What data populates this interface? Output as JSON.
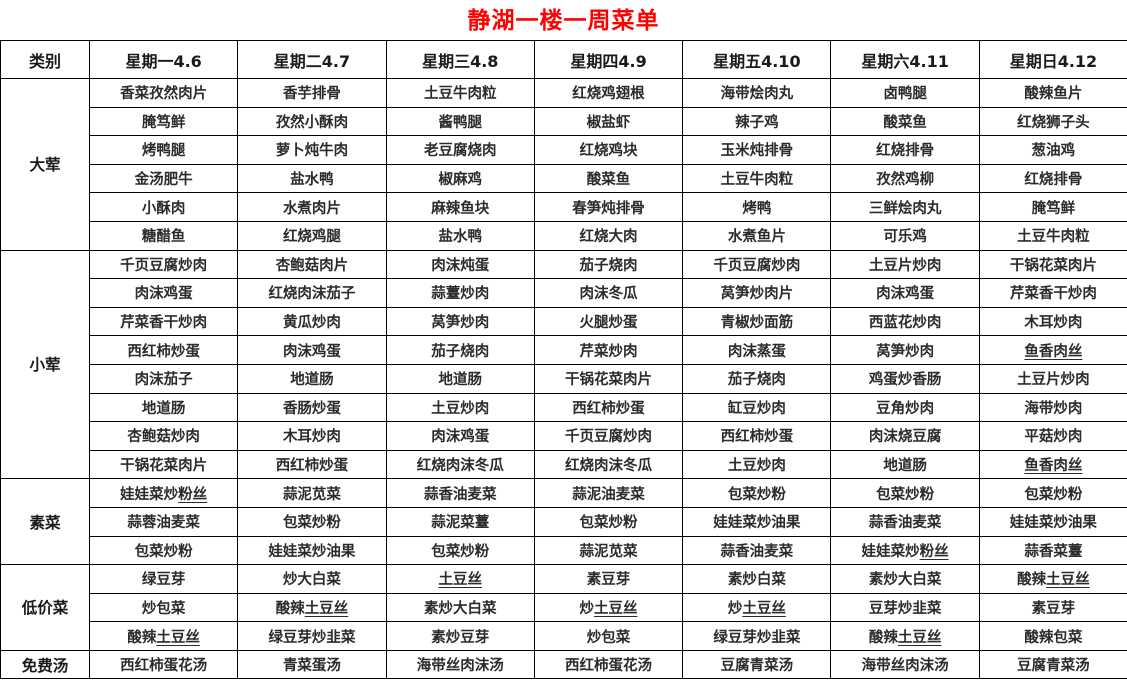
{
  "title": "静湖一楼一周菜单",
  "title_color": "#ff0000",
  "header": [
    "类别",
    "星期一4.6",
    "星期二4.7",
    "星期三4.8",
    "星期四4.9",
    "星期五4.10",
    "星期六4.11",
    "星期日4.12"
  ],
  "underline_suffixes": [
    "土豆丝",
    "粉丝",
    "鱼香肉丝"
  ],
  "sections": [
    {
      "category": "大荤",
      "rows": [
        [
          "香菜孜然肉片",
          "香芋排骨",
          "土豆牛肉粒",
          "红烧鸡翅根",
          "海带烩肉丸",
          "卤鸭腿",
          "酸辣鱼片"
        ],
        [
          "腌笃鲜",
          "孜然小酥肉",
          "酱鸭腿",
          "椒盐虾",
          "辣子鸡",
          "酸菜鱼",
          "红烧狮子头"
        ],
        [
          "烤鸭腿",
          "萝卜炖牛肉",
          "老豆腐烧肉",
          "红烧鸡块",
          "玉米炖排骨",
          "红烧排骨",
          "葱油鸡"
        ],
        [
          "金汤肥牛",
          "盐水鸭",
          "椒麻鸡",
          "酸菜鱼",
          "土豆牛肉粒",
          "孜然鸡柳",
          "红烧排骨"
        ],
        [
          "小酥肉",
          "水煮肉片",
          "麻辣鱼块",
          "春笋炖排骨",
          "烤鸭",
          "三鲜烩肉丸",
          "腌笃鲜"
        ],
        [
          "糖醋鱼",
          "红烧鸡腿",
          "盐水鸭",
          "红烧大肉",
          "水煮鱼片",
          "可乐鸡",
          "土豆牛肉粒"
        ]
      ]
    },
    {
      "category": "小荤",
      "rows": [
        [
          "千页豆腐炒肉",
          "杏鲍菇肉片",
          "肉沫炖蛋",
          "茄子烧肉",
          "千页豆腐炒肉",
          "土豆片炒肉",
          "干锅花菜肉片"
        ],
        [
          "肉沫鸡蛋",
          "红烧肉沫茄子",
          "蒜薹炒肉",
          "肉沫冬瓜",
          "莴笋炒肉片",
          "肉沫鸡蛋",
          "芹菜香干炒肉"
        ],
        [
          "芹菜香干炒肉",
          "黄瓜炒肉",
          "莴笋炒肉",
          "火腿炒蛋",
          "青椒炒面筋",
          "西蓝花炒肉",
          "木耳炒肉"
        ],
        [
          "西红柿炒蛋",
          "肉沫鸡蛋",
          "茄子烧肉",
          "芹菜炒肉",
          "肉沫蒸蛋",
          "莴笋炒肉",
          "鱼香肉丝"
        ],
        [
          "肉沫茄子",
          "地道肠",
          "地道肠",
          "干锅花菜肉片",
          "茄子烧肉",
          "鸡蛋炒香肠",
          "土豆片炒肉"
        ],
        [
          "地道肠",
          "香肠炒蛋",
          "土豆炒肉",
          "西红柿炒蛋",
          "缸豆炒肉",
          "豆角炒肉",
          "海带炒肉"
        ],
        [
          "杏鲍菇炒肉",
          "木耳炒肉",
          "肉沫鸡蛋",
          "千页豆腐炒肉",
          "西红柿炒蛋",
          "肉沫烧豆腐",
          "平菇炒肉"
        ],
        [
          "干锅花菜肉片",
          "西红柿炒蛋",
          "红烧肉沫冬瓜",
          "红烧肉沫冬瓜",
          "土豆炒肉",
          "地道肠",
          "鱼香肉丝"
        ]
      ]
    },
    {
      "category": "素菜",
      "rows": [
        [
          "娃娃菜炒粉丝",
          "蒜泥苋菜",
          "蒜香油麦菜",
          "蒜泥油麦菜",
          "包菜炒粉",
          "包菜炒粉",
          "包菜炒粉"
        ],
        [
          "蒜蓉油麦菜",
          "包菜炒粉",
          "蒜泥菜薹",
          "包菜炒粉",
          "娃娃菜炒油果",
          "蒜香油麦菜",
          "娃娃菜炒油果"
        ],
        [
          "包菜炒粉",
          "娃娃菜炒油果",
          "包菜炒粉",
          "蒜泥苋菜",
          "蒜香油麦菜",
          "娃娃菜炒粉丝",
          "蒜香菜薹"
        ]
      ]
    },
    {
      "category": "低价菜",
      "rows": [
        [
          "绿豆芽",
          "炒大白菜",
          "土豆丝",
          "素豆芽",
          "素炒白菜",
          "素炒大白菜",
          "酸辣土豆丝"
        ],
        [
          "炒包菜",
          "酸辣土豆丝",
          "素炒大白菜",
          "炒土豆丝",
          "炒土豆丝",
          "豆芽炒韭菜",
          "素豆芽"
        ],
        [
          "酸辣土豆丝",
          "绿豆芽炒韭菜",
          "素炒豆芽",
          "炒包菜",
          "绿豆芽炒韭菜",
          "酸辣土豆丝",
          "酸辣包菜"
        ]
      ]
    },
    {
      "category": "免费汤",
      "rows": [
        [
          "西红柿蛋花汤",
          "青菜蛋汤",
          "海带丝肉沫汤",
          "西红柿蛋花汤",
          "豆腐青菜汤",
          "海带丝肉沫汤",
          "豆腐青菜汤"
        ]
      ]
    }
  ]
}
